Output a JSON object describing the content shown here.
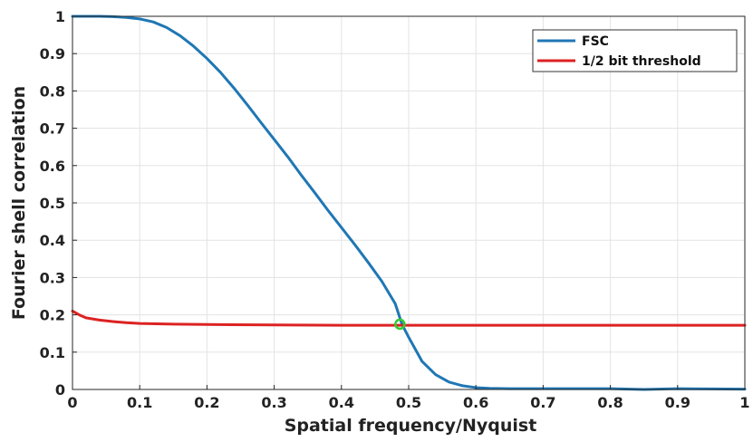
{
  "chart_data": {
    "type": "line",
    "xlabel": "Spatial frequency/Nyquist",
    "ylabel": "Fourier shell correlation",
    "xlim": [
      0,
      1
    ],
    "ylim": [
      0,
      1
    ],
    "xticks": [
      "0",
      "0.1",
      "0.2",
      "0.3",
      "0.4",
      "0.5",
      "0.6",
      "0.7",
      "0.8",
      "0.9",
      "1"
    ],
    "yticks": [
      "0",
      "0.1",
      "0.2",
      "0.3",
      "0.4",
      "0.5",
      "0.6",
      "0.7",
      "0.8",
      "0.9",
      "1"
    ],
    "grid": true,
    "legend_position": "top-right",
    "series": [
      {
        "name": "FSC",
        "color": "#1f77b4",
        "x": [
          0,
          0.02,
          0.04,
          0.06,
          0.08,
          0.1,
          0.12,
          0.14,
          0.16,
          0.18,
          0.2,
          0.22,
          0.24,
          0.26,
          0.28,
          0.3,
          0.32,
          0.34,
          0.36,
          0.38,
          0.4,
          0.42,
          0.44,
          0.46,
          0.48,
          0.49,
          0.5,
          0.52,
          0.54,
          0.56,
          0.58,
          0.6,
          0.62,
          0.65,
          0.7,
          0.8,
          0.85,
          0.9,
          1
        ],
        "y": [
          1,
          1,
          1,
          0.999,
          0.997,
          0.993,
          0.985,
          0.97,
          0.948,
          0.92,
          0.887,
          0.85,
          0.808,
          0.763,
          0.716,
          0.67,
          0.624,
          0.575,
          0.528,
          0.48,
          0.434,
          0.388,
          0.34,
          0.29,
          0.23,
          0.175,
          0.14,
          0.075,
          0.04,
          0.02,
          0.01,
          0.005,
          0.003,
          0.002,
          0.002,
          0.002,
          0.0,
          0.002,
          0.001
        ]
      },
      {
        "name": "1/2 bit threshold",
        "color": "#dd2222",
        "x": [
          0,
          0.01,
          0.02,
          0.04,
          0.06,
          0.08,
          0.1,
          0.15,
          0.2,
          0.3,
          0.4,
          0.5,
          0.6,
          0.7,
          0.8,
          0.9,
          1
        ],
        "y": [
          0.21,
          0.2,
          0.192,
          0.186,
          0.182,
          0.179,
          0.177,
          0.175,
          0.174,
          0.173,
          0.172,
          0.172,
          0.172,
          0.172,
          0.172,
          0.172,
          0.172
        ]
      }
    ],
    "annotations": [
      {
        "type": "marker",
        "x": 0.487,
        "y": 0.175,
        "color": "#33cc33"
      }
    ]
  }
}
